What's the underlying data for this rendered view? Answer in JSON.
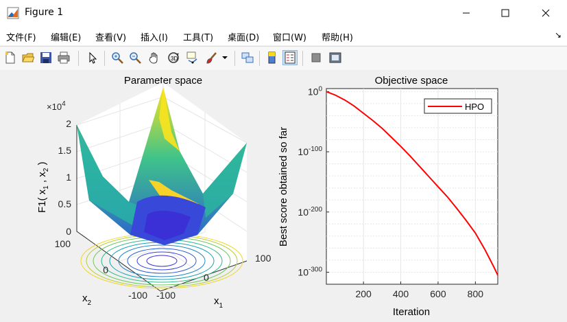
{
  "window": {
    "title": "Figure 1"
  },
  "menu": [
    {
      "label": "文件(F)"
    },
    {
      "label": "编辑(E)"
    },
    {
      "label": "查看(V)"
    },
    {
      "label": "插入(I)"
    },
    {
      "label": "工具(T)"
    },
    {
      "label": "桌面(D)"
    },
    {
      "label": "窗口(W)"
    },
    {
      "label": "帮助(H)"
    }
  ],
  "toolbar": {
    "icons": [
      "new-figure-icon",
      "open-file-icon",
      "save-icon",
      "print-icon",
      "pointer-icon",
      "zoom-in-icon",
      "zoom-out-icon",
      "pan-icon",
      "rotate-3d-icon",
      "data-cursor-icon",
      "brush-icon",
      "link-plot-icon",
      "colorbar-icon",
      "legend-icon",
      "hide-plot-tools-icon",
      "show-plot-tools-icon"
    ]
  },
  "left_plot": {
    "title": "Parameter space",
    "zlabel": "F1( x1 , x2 )",
    "exponent": "×10^4",
    "z_ticks": [
      "0",
      "0.5",
      "1",
      "1.5",
      "2"
    ],
    "x2_ticks": [
      "100",
      "0",
      "-100"
    ],
    "x1_ticks": [
      "-100",
      "0",
      "100"
    ],
    "x1_label": "x1",
    "x2_label": "x2",
    "colors": {
      "low": "#3b2fd6",
      "mid": "#1fb7a8",
      "high": "#f9e31e"
    }
  },
  "chart_data": {
    "type": "line",
    "title": "Objective space",
    "xlabel": "Iteration",
    "ylabel": "Best score obtained so far",
    "yscale": "log",
    "x_ticks": [
      200,
      400,
      600,
      800
    ],
    "y_ticks": [
      "10^0",
      "10^-100",
      "10^-200",
      "10^-300"
    ],
    "xlim": [
      1,
      920
    ],
    "ylim_exponent": [
      -320,
      5
    ],
    "grid": true,
    "legend_position": "top-right",
    "series": [
      {
        "name": "HPO",
        "color": "#ff0000",
        "x": [
          1,
          50,
          100,
          150,
          200,
          250,
          300,
          350,
          400,
          450,
          500,
          550,
          600,
          650,
          700,
          750,
          800,
          850,
          900,
          920
        ],
        "log10_y": [
          0,
          -6,
          -14,
          -24,
          -36,
          -48,
          -61,
          -76,
          -91,
          -107,
          -124,
          -141,
          -158,
          -175,
          -194,
          -214,
          -235,
          -262,
          -292,
          -305
        ]
      }
    ]
  }
}
